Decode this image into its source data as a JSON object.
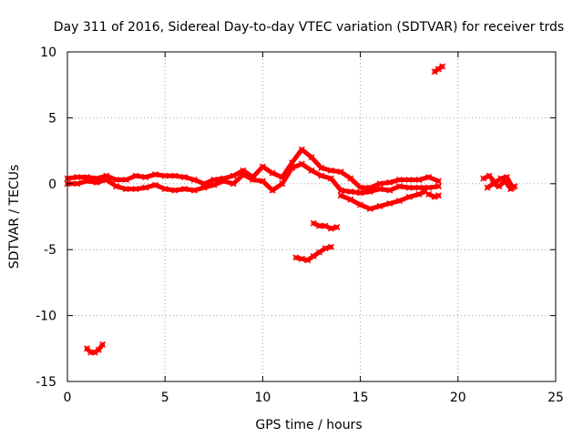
{
  "chart_data": {
    "type": "scatter",
    "title": "Day 311 of 2016, Sidereal Day-to-day VTEC variation (SDTVAR) for receiver trds",
    "xlabel": "GPS time / hours",
    "ylabel": "SDTVAR / TECUs",
    "xlim": [
      0,
      25
    ],
    "ylim": [
      -15,
      10
    ],
    "xticks": [
      0,
      5,
      10,
      15,
      20,
      25
    ],
    "yticks": [
      -15,
      -10,
      -5,
      0,
      5,
      10
    ],
    "grid": true,
    "marker_color": "#ff0000",
    "series": [
      {
        "name": "main-track-upper",
        "x": [
          0,
          0.5,
          1,
          1.5,
          2,
          2.5,
          3,
          3.5,
          4,
          4.5,
          5,
          5.5,
          6,
          6.5,
          7,
          7.5,
          8,
          8.5,
          9,
          9.5,
          10,
          10.5,
          11,
          11.5,
          12,
          12.5,
          13,
          13.5,
          14,
          14.5,
          15,
          15.5,
          16,
          16.5,
          17,
          17.5,
          18,
          18.5,
          19
        ],
        "y": [
          0.4,
          0.5,
          0.5,
          0.4,
          0.6,
          0.3,
          0.3,
          0.6,
          0.5,
          0.7,
          0.6,
          0.6,
          0.5,
          0.3,
          0.0,
          0.3,
          0.4,
          0.6,
          1.0,
          0.5,
          1.3,
          0.8,
          0.5,
          1.6,
          2.6,
          2.0,
          1.2,
          1.0,
          0.9,
          0.4,
          -0.3,
          -0.3,
          0.0,
          0.1,
          0.3,
          0.3,
          0.3,
          0.5,
          0.2
        ]
      },
      {
        "name": "main-track-lower",
        "x": [
          0,
          0.5,
          1,
          1.5,
          2,
          2.5,
          3,
          3.5,
          4,
          4.5,
          5,
          5.5,
          6,
          6.5,
          7,
          7.5,
          8,
          8.5,
          9,
          9.5,
          10,
          10.5,
          11,
          11.5,
          12,
          12.5,
          13,
          13.5,
          14,
          14.5,
          15,
          15.5,
          16,
          16.5,
          17,
          17.5,
          18,
          18.5,
          19
        ],
        "y": [
          0.0,
          0.0,
          0.2,
          0.1,
          0.3,
          -0.2,
          -0.4,
          -0.4,
          -0.3,
          -0.1,
          -0.4,
          -0.5,
          -0.4,
          -0.5,
          -0.3,
          -0.1,
          0.2,
          0.0,
          0.7,
          0.3,
          0.2,
          -0.5,
          0.0,
          1.2,
          1.5,
          1.0,
          0.6,
          0.4,
          -0.5,
          -0.6,
          -0.7,
          -0.6,
          -0.4,
          -0.5,
          -0.2,
          -0.3,
          -0.3,
          -0.3,
          -0.2
        ]
      },
      {
        "name": "dip-track",
        "x": [
          14,
          14.5,
          15,
          15.5,
          16,
          16.5,
          17,
          17.5,
          18,
          18.3
        ],
        "y": [
          -0.9,
          -1.2,
          -1.6,
          -1.9,
          -1.7,
          -1.5,
          -1.3,
          -1.0,
          -0.8,
          -0.6
        ]
      },
      {
        "name": "segment-19h",
        "x": [
          18.5,
          18.8,
          19.0
        ],
        "y": [
          -0.8,
          -1.0,
          -0.9
        ]
      },
      {
        "name": "segment-22h",
        "x": [
          21.3,
          21.6,
          21.9,
          22.2,
          22.5,
          22.8
        ],
        "y": [
          0.4,
          0.6,
          0.1,
          0.4,
          0.5,
          -0.3
        ]
      },
      {
        "name": "segment-22h-lower",
        "x": [
          21.5,
          21.8,
          22.1,
          22.4,
          22.7,
          22.9
        ],
        "y": [
          -0.3,
          0.0,
          -0.2,
          0.2,
          -0.4,
          -0.2
        ]
      },
      {
        "name": "outlier-1h",
        "x": [
          1.0,
          1.2,
          1.4,
          1.6,
          1.8
        ],
        "y": [
          -12.5,
          -12.8,
          -12.8,
          -12.6,
          -12.2
        ]
      },
      {
        "name": "outlier-11.5h",
        "x": [
          11.7,
          12.0,
          12.3,
          12.6,
          12.9,
          13.2,
          13.5
        ],
        "y": [
          -5.6,
          -5.7,
          -5.8,
          -5.5,
          -5.2,
          -4.9,
          -4.8
        ]
      },
      {
        "name": "outlier-12.8h",
        "x": [
          12.6,
          12.9,
          13.2,
          13.5,
          13.8
        ],
        "y": [
          -3.0,
          -3.2,
          -3.2,
          -3.4,
          -3.3
        ]
      },
      {
        "name": "outlier-19h",
        "x": [
          18.8,
          19.0,
          19.2
        ],
        "y": [
          8.5,
          8.7,
          8.9
        ]
      }
    ]
  }
}
